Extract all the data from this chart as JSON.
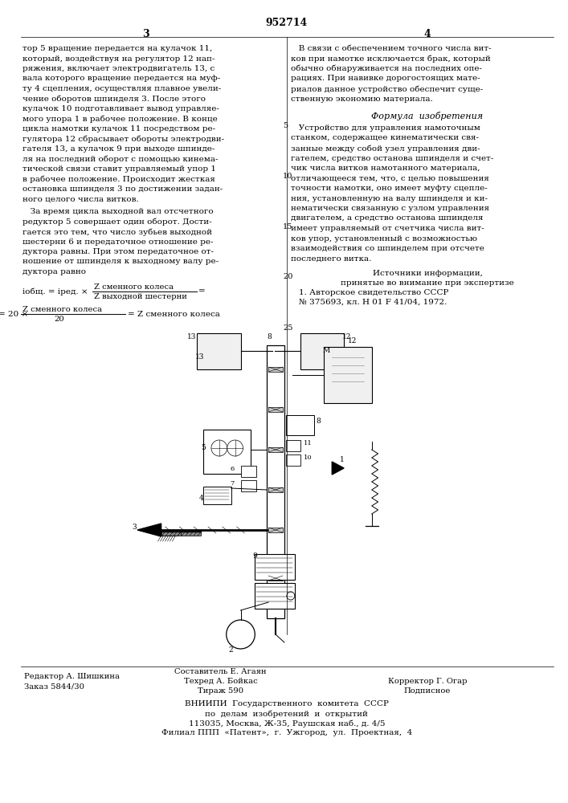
{
  "patent_number": "952714",
  "col_left_number": "3",
  "col_right_number": "4",
  "background_color": "#ffffff",
  "text_color": "#000000",
  "col_left_text": [
    "тор 5 вращение передается на кулачок 11,",
    "который, воздействуя на регулятор 12 нап-",
    "ряжения, включает электродвигатель 13, с",
    "вала которого вращение передается на муф-",
    "ту 4 сцепления, осуществляя плавное увели-",
    "чение оборотов шпинделя 3. После этого",
    "кулачок 10 подготавливает вывод управляе-",
    "мого упора 1 в рабочее положение. В конце",
    "цикла намотки кулачок 11 посредством ре-",
    "гулятора 12 сбрасывает обороты электродви-",
    "гателя 13, а кулачок 9 при выходе шпинде-",
    "ля на последний оборот с помощью кинема-",
    "тической связи ставит управляемый упор 1",
    "в рабочее положение. Происходит жесткая",
    "остановка шпинделя 3 по достижении задан-",
    "ного целого числа витков."
  ],
  "col_left_text2": [
    "   За время цикла выходной вал отсчетного",
    "редуктор 5 совершает один оборот. Дости-",
    "гается это тем, что число зубьев выходной",
    "шестерни 6 и передаточное отношение ре-",
    "дуктора равны. При этом передаточное от-",
    "ношение от шпинделя к выходному валу ре-",
    "дуктора равно"
  ],
  "col_right_text": [
    "   В связи с обеспечением точного числа вит-",
    "ков при намотке исключается брак, который",
    "обычно обнаруживается на последних опе-",
    "рациях. При навивке дорогостоящих мате-",
    "риалов данное устройство обеспечит суще-",
    "ственную экономию материала."
  ],
  "formula_heading": "Формула  изобретения",
  "col_right_formula": [
    "   Устройство для управления намоточным",
    "станком, содержащее кинематически свя-",
    "занные между собой узел управления дви-",
    "гателем, средство останова шпинделя и счет-",
    "чик числа витков намотанного материала,",
    "отличающееся тем, что, с целью повышения",
    "точности намотки, оно имеет муфту сцепле-",
    "ния, установленную на валу шпинделя и ки-",
    "нематически связанную с узлом управления",
    "двигателем, а средство останова шпинделя",
    "имеет управляемый от счетчика числа вит-",
    "ков упор, установленный с возможностью",
    "взаимодействия со шпинделем при отсчете",
    "последнего витка."
  ],
  "sources_heading": "Источники информации,",
  "sources_subheading": "принятые во внимание при экспертизе",
  "source1": "1. Авторское свидетельство СССР",
  "source2": "№ 375693, кл. Н 01 F 41/04, 1972.",
  "footer_editor": "Редактор А. Шишкина",
  "footer_order": "Заказ 5844/30",
  "footer_compiler_label": "Составитель Е. Агаян",
  "footer_tech": "Техред А. Бойкас",
  "footer_tirazh": "Тираж 590",
  "footer_corrector": "Корректор Г. Огар",
  "footer_podpisnoe": "Подписное",
  "footer_vniipи": "ВНИИПИ  Государственного  комитета  СССР",
  "footer_line2": "по  делам  изобретений  и  открытий",
  "footer_line3": "113035, Москва, Ж-35, Раушская наб., д. 4/5",
  "footer_line4": "Филиал ППП  «Патент»,  г.  Ужгород,  ул.  Проектная,  4"
}
